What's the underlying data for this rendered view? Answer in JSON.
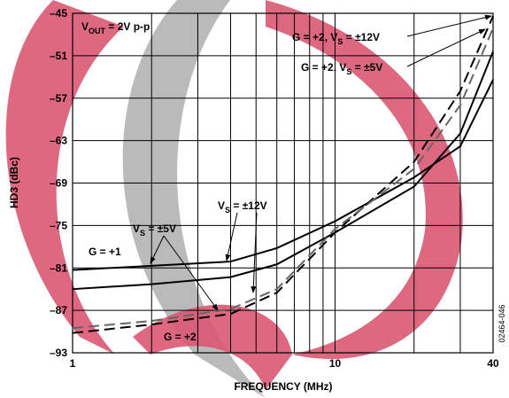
{
  "chart_data": {
    "type": "line",
    "xlabel": "FREQUENCY (MHz)",
    "ylabel": "HD3 (dBc)",
    "xlog": true,
    "xlim": [
      1,
      40
    ],
    "ylim": [
      -93,
      -45
    ],
    "xticks": [
      1,
      10,
      40
    ],
    "xminor": [
      2,
      3,
      4,
      5,
      6,
      7,
      8,
      9,
      20,
      30
    ],
    "yticks": [
      {
        "value": -45,
        "label": "–45"
      },
      {
        "value": -51,
        "label": "–51"
      },
      {
        "value": -57,
        "label": "–57"
      },
      {
        "value": -63,
        "label": "–63"
      },
      {
        "value": -69,
        "label": "–69"
      },
      {
        "value": -75,
        "label": "–75"
      },
      {
        "value": -81,
        "label": "–81"
      },
      {
        "value": -87,
        "label": "–87"
      },
      {
        "value": -93,
        "label": "–93"
      }
    ],
    "grid": true,
    "x": [
      1,
      2,
      4,
      6,
      10,
      20,
      30,
      40
    ],
    "series": [
      {
        "color": "#000",
        "dashed": false,
        "values": [
          -81.3,
          -80.7,
          -80.1,
          -78.2,
          -74.4,
          -68.2,
          -63.8,
          -54.4
        ]
      },
      {
        "color": "#000",
        "dashed": false,
        "values": [
          -84,
          -83.3,
          -82.3,
          -80.5,
          -76,
          -69.5,
          -62,
          -50.4
        ]
      },
      {
        "color": "#000",
        "dashed": true,
        "values": [
          -90.2,
          -89,
          -87.5,
          -84.5,
          -76,
          -66,
          -56,
          -45.4
        ]
      },
      {
        "color": "#666",
        "dashed": true,
        "values": [
          -89.5,
          -88.5,
          -86.8,
          -84,
          -75.5,
          -67,
          -58,
          -47.1
        ]
      }
    ],
    "annotations": [
      {
        "text": "V",
        "sub": "OUT",
        "rest": " = 2V p-p"
      },
      {
        "text": "G = +2, V",
        "sub": "S",
        "rest": " = ±12V"
      },
      {
        "text": "G = +2, V",
        "sub": "S",
        "rest": " = ±5V"
      },
      {
        "text": "V",
        "sub": "S",
        "rest": " = ±12V"
      },
      {
        "text": "V",
        "sub": "S",
        "rest": " = ±5V"
      },
      {
        "text": "G = +1"
      },
      {
        "text": "G = +2"
      }
    ],
    "figure_id": "02464-046"
  }
}
